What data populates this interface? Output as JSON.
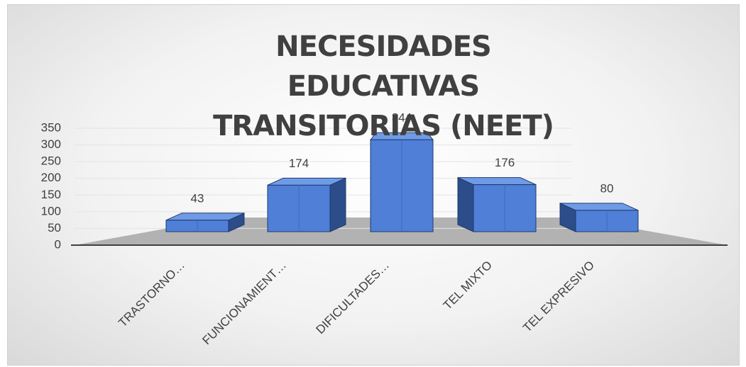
{
  "chart_data": {
    "type": "bar3d",
    "title": "NECESIDADES EDUCATIVAS TRANSITORIAS (NEET)",
    "categories": [
      "TRASTORNO…",
      "FUNCIONAMIENT…",
      "DIFICULTADES…",
      "TEL MIXTO",
      "TEL EXPRESIVO"
    ],
    "values": [
      43,
      174,
      344,
      176,
      80
    ],
    "color": "#4f7fd6",
    "ylim": [
      0,
      350
    ],
    "yticks": [
      0,
      50,
      100,
      150,
      200,
      250,
      300,
      350
    ],
    "grid": true
  }
}
